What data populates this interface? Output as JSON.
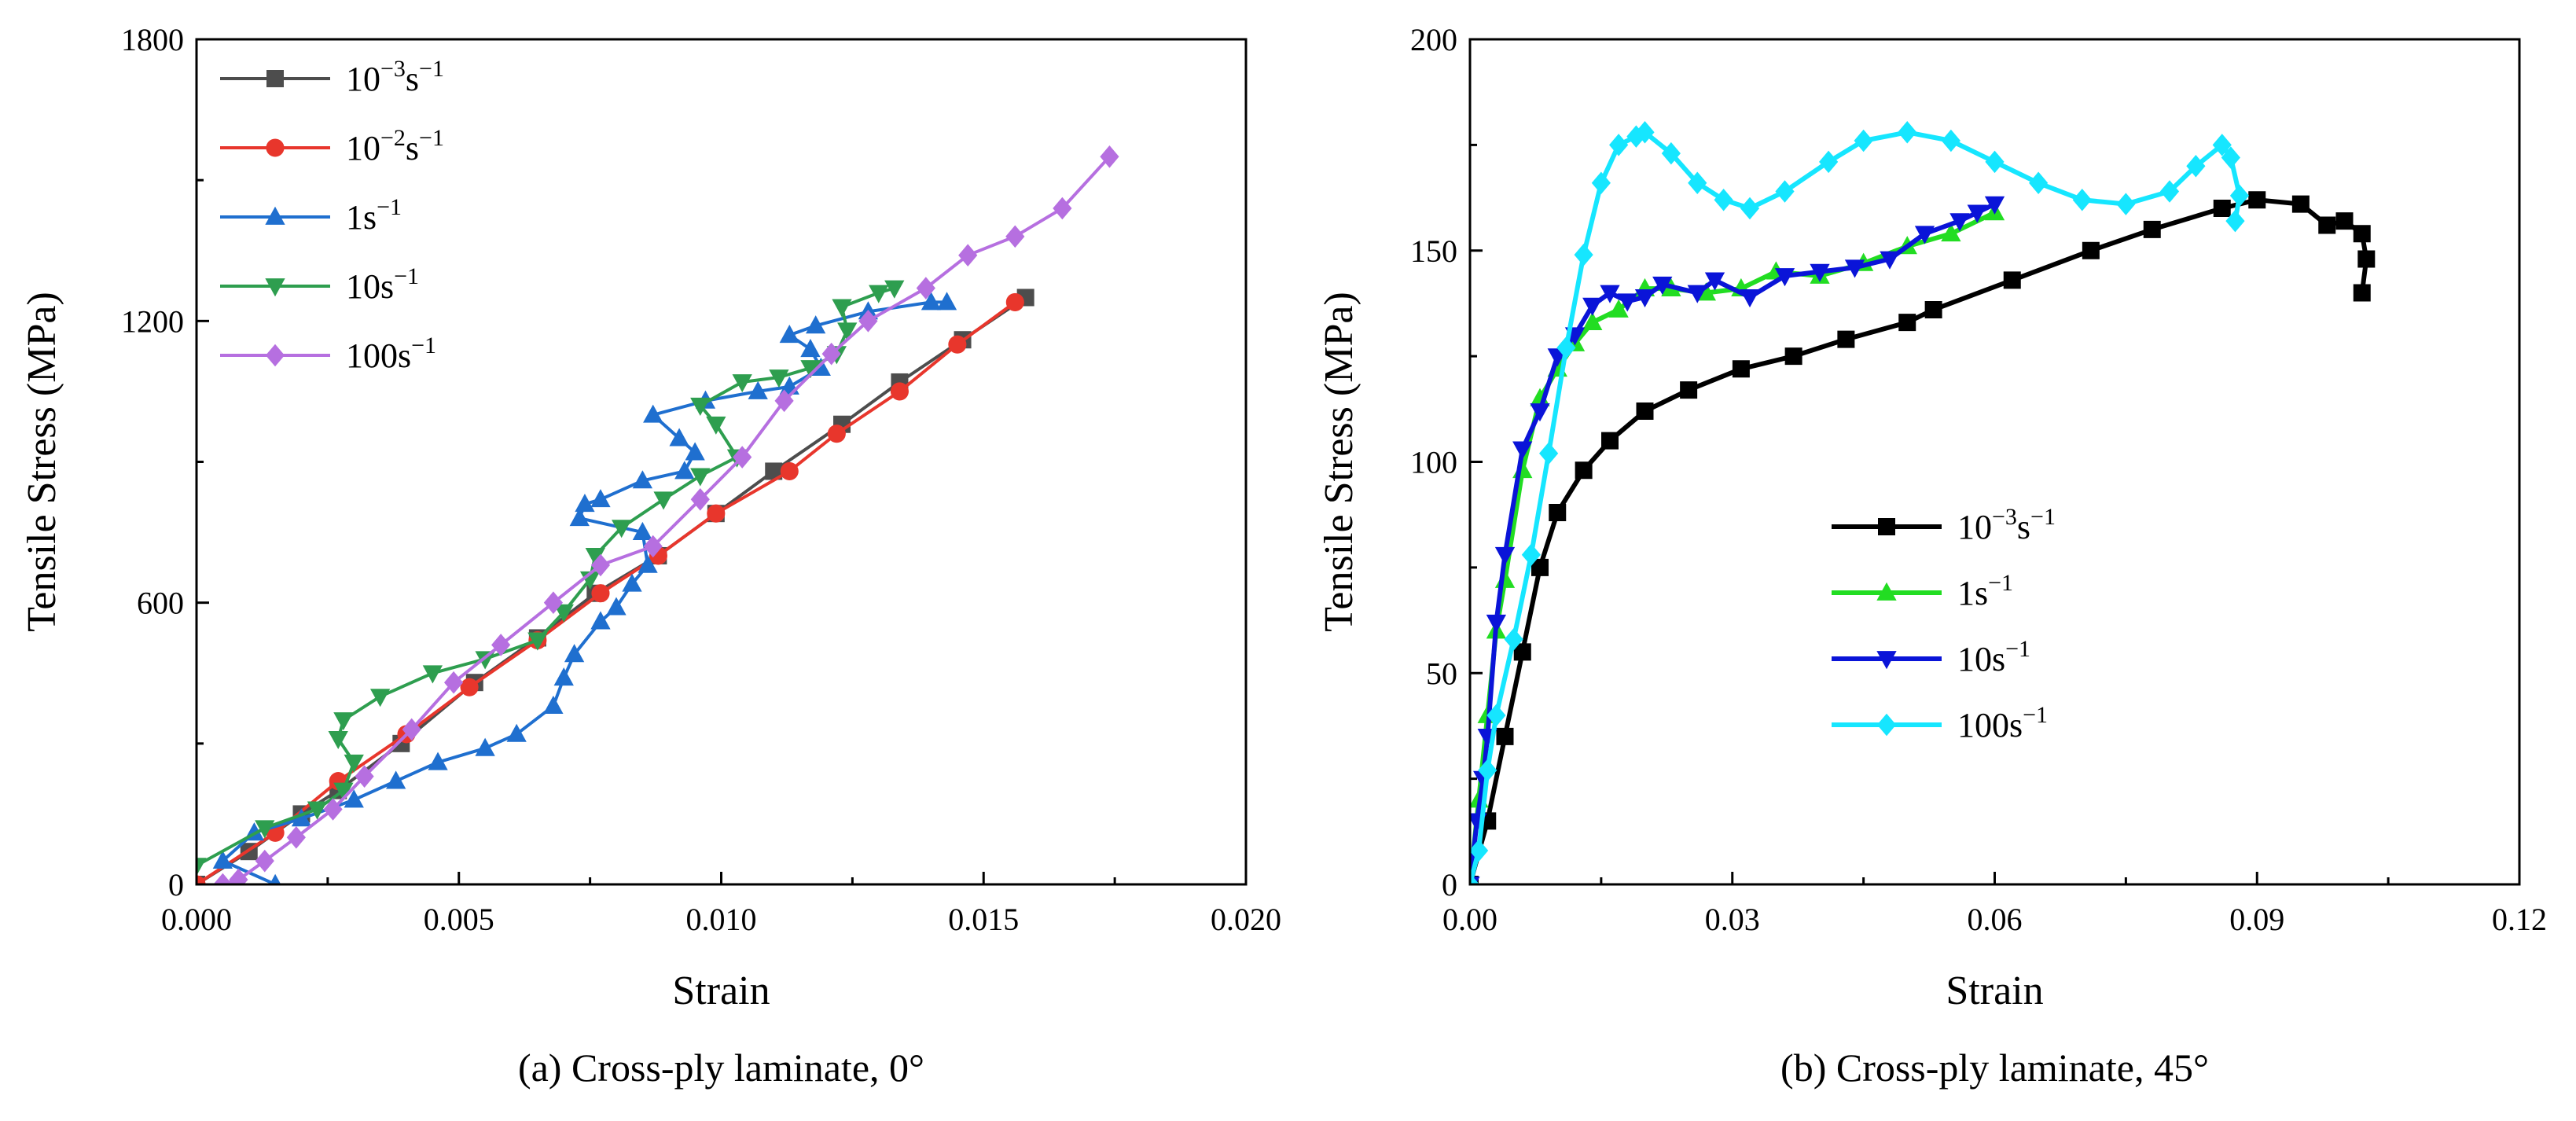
{
  "chart_data": [
    {
      "type": "line",
      "caption": "(a) Cross-ply laminate, 0°",
      "xlabel": "Strain",
      "ylabel": "Tensile Stress (MPa)",
      "xlim": [
        0,
        0.02
      ],
      "ylim": [
        0,
        1800
      ],
      "xticks": [
        "0.000",
        "0.005",
        "0.010",
        "0.015",
        "0.020"
      ],
      "yticks": [
        "0",
        "600",
        "1200",
        "1800"
      ],
      "legend_position": "top-left",
      "series": [
        {
          "name": "10⁻³s⁻¹",
          "base": "10",
          "exp": "−3",
          "unit": "s",
          "uexp": "−1",
          "color": "#4d4d4d",
          "marker": "square",
          "points": [
            [
              0.0,
              0
            ],
            [
              0.001,
              70
            ],
            [
              0.002,
              150
            ],
            [
              0.0027,
              200
            ],
            [
              0.0039,
              300
            ],
            [
              0.0053,
              430
            ],
            [
              0.0065,
              525
            ],
            [
              0.0076,
              620
            ],
            [
              0.0088,
              700
            ],
            [
              0.0099,
              790
            ],
            [
              0.011,
              880
            ],
            [
              0.0123,
              980
            ],
            [
              0.0134,
              1070
            ],
            [
              0.0146,
              1160
            ],
            [
              0.0158,
              1250
            ]
          ]
        },
        {
          "name": "10⁻²s⁻¹",
          "base": "10",
          "exp": "−2",
          "unit": "s",
          "uexp": "−1",
          "color": "#e8362c",
          "marker": "circle",
          "points": [
            [
              0.0,
              0
            ],
            [
              0.0015,
              110
            ],
            [
              0.0027,
              220
            ],
            [
              0.004,
              320
            ],
            [
              0.0052,
              420
            ],
            [
              0.0065,
              520
            ],
            [
              0.0077,
              620
            ],
            [
              0.0088,
              700
            ],
            [
              0.0099,
              790
            ],
            [
              0.0113,
              880
            ],
            [
              0.0122,
              960
            ],
            [
              0.0134,
              1050
            ],
            [
              0.0145,
              1150
            ],
            [
              0.0156,
              1240
            ]
          ]
        },
        {
          "name": "1s⁻¹",
          "base": "1",
          "exp": "",
          "unit": "s",
          "uexp": "−1",
          "color": "#1f6fcf",
          "marker": "triangle-up",
          "points": [
            [
              0.0015,
              0
            ],
            [
              0.0005,
              50
            ],
            [
              0.0011,
              110
            ],
            [
              0.002,
              140
            ],
            [
              0.003,
              180
            ],
            [
              0.0038,
              220
            ],
            [
              0.0046,
              260
            ],
            [
              0.0055,
              290
            ],
            [
              0.0061,
              320
            ],
            [
              0.0068,
              380
            ],
            [
              0.007,
              440
            ],
            [
              0.0072,
              490
            ],
            [
              0.0077,
              560
            ],
            [
              0.008,
              590
            ],
            [
              0.0083,
              640
            ],
            [
              0.0086,
              680
            ],
            [
              0.0085,
              750
            ],
            [
              0.0073,
              780
            ],
            [
              0.0074,
              810
            ],
            [
              0.0077,
              820
            ],
            [
              0.0085,
              860
            ],
            [
              0.0093,
              880
            ],
            [
              0.0095,
              920
            ],
            [
              0.0092,
              950
            ],
            [
              0.0087,
              1000
            ],
            [
              0.0097,
              1030
            ],
            [
              0.0107,
              1050
            ],
            [
              0.0113,
              1060
            ],
            [
              0.0119,
              1100
            ],
            [
              0.0117,
              1140
            ],
            [
              0.0113,
              1170
            ],
            [
              0.0118,
              1190
            ],
            [
              0.0128,
              1220
            ],
            [
              0.014,
              1240
            ],
            [
              0.0143,
              1240
            ]
          ]
        },
        {
          "name": "10s⁻¹",
          "base": "10",
          "exp": "",
          "unit": "s",
          "uexp": "−1",
          "color": "#2e9e4f",
          "marker": "triangle-down",
          "points": [
            [
              0.0,
              40
            ],
            [
              0.0013,
              120
            ],
            [
              0.0023,
              160
            ],
            [
              0.0028,
              200
            ],
            [
              0.003,
              260
            ],
            [
              0.0027,
              310
            ],
            [
              0.0028,
              350
            ],
            [
              0.0035,
              400
            ],
            [
              0.0045,
              450
            ],
            [
              0.0055,
              480
            ],
            [
              0.0065,
              520
            ],
            [
              0.007,
              580
            ],
            [
              0.0075,
              650
            ],
            [
              0.0076,
              700
            ],
            [
              0.0081,
              760
            ],
            [
              0.0089,
              820
            ],
            [
              0.0096,
              870
            ],
            [
              0.0103,
              910
            ],
            [
              0.0099,
              980
            ],
            [
              0.0096,
              1020
            ],
            [
              0.0104,
              1070
            ],
            [
              0.0111,
              1080
            ],
            [
              0.0117,
              1100
            ],
            [
              0.0122,
              1130
            ],
            [
              0.0124,
              1180
            ],
            [
              0.0123,
              1230
            ],
            [
              0.013,
              1260
            ],
            [
              0.0133,
              1270
            ]
          ]
        },
        {
          "name": "100s⁻¹",
          "base": "100",
          "exp": "",
          "unit": "s",
          "uexp": "−1",
          "color": "#b66fe0",
          "marker": "diamond",
          "points": [
            [
              0.0005,
              0
            ],
            [
              0.0008,
              10
            ],
            [
              0.0013,
              50
            ],
            [
              0.0019,
              100
            ],
            [
              0.0026,
              160
            ],
            [
              0.0032,
              230
            ],
            [
              0.0041,
              330
            ],
            [
              0.0049,
              430
            ],
            [
              0.0058,
              510
            ],
            [
              0.0068,
              600
            ],
            [
              0.0077,
              680
            ],
            [
              0.0087,
              720
            ],
            [
              0.0096,
              820
            ],
            [
              0.0104,
              910
            ],
            [
              0.0112,
              1030
            ],
            [
              0.0121,
              1130
            ],
            [
              0.0128,
              1200
            ],
            [
              0.0139,
              1270
            ],
            [
              0.0147,
              1340
            ],
            [
              0.0156,
              1380
            ],
            [
              0.0165,
              1440
            ],
            [
              0.0174,
              1550
            ]
          ]
        }
      ]
    },
    {
      "type": "line",
      "caption": "(b) Cross-ply laminate, 45°",
      "xlabel": "Strain",
      "ylabel": "Tensile Stress (MPa)",
      "xlim": [
        0,
        0.12
      ],
      "ylim": [
        0,
        200
      ],
      "xticks": [
        "0.00",
        "0.03",
        "0.06",
        "0.09",
        "0.12"
      ],
      "yticks": [
        "0",
        "50",
        "100",
        "150",
        "200"
      ],
      "legend_position": "center-right",
      "series": [
        {
          "name": "10⁻³s⁻¹",
          "base": "10",
          "exp": "−3",
          "unit": "s",
          "uexp": "−1",
          "color": "#000000",
          "marker": "square",
          "points": [
            [
              0.0,
              0
            ],
            [
              0.002,
              15
            ],
            [
              0.004,
              35
            ],
            [
              0.006,
              55
            ],
            [
              0.008,
              75
            ],
            [
              0.01,
              88
            ],
            [
              0.013,
              98
            ],
            [
              0.016,
              105
            ],
            [
              0.02,
              112
            ],
            [
              0.025,
              117
            ],
            [
              0.031,
              122
            ],
            [
              0.037,
              125
            ],
            [
              0.043,
              129
            ],
            [
              0.05,
              133
            ],
            [
              0.053,
              136
            ],
            [
              0.062,
              143
            ],
            [
              0.071,
              150
            ],
            [
              0.078,
              155
            ],
            [
              0.086,
              160
            ],
            [
              0.09,
              162
            ],
            [
              0.095,
              161
            ],
            [
              0.098,
              156
            ],
            [
              0.1,
              157
            ],
            [
              0.102,
              154
            ],
            [
              0.1025,
              148
            ],
            [
              0.102,
              140
            ]
          ]
        },
        {
          "name": "1s⁻¹",
          "base": "1",
          "exp": "",
          "unit": "s",
          "uexp": "−1",
          "color": "#22dd22",
          "marker": "triangle-up",
          "points": [
            [
              0.0,
              0
            ],
            [
              0.001,
              20
            ],
            [
              0.002,
              40
            ],
            [
              0.003,
              60
            ],
            [
              0.004,
              72
            ],
            [
              0.006,
              98
            ],
            [
              0.008,
              115
            ],
            [
              0.01,
              122
            ],
            [
              0.012,
              128
            ],
            [
              0.014,
              133
            ],
            [
              0.017,
              136
            ],
            [
              0.02,
              141
            ],
            [
              0.023,
              141
            ],
            [
              0.027,
              140
            ],
            [
              0.031,
              141
            ],
            [
              0.035,
              145
            ],
            [
              0.04,
              144
            ],
            [
              0.045,
              147
            ],
            [
              0.05,
              151
            ],
            [
              0.055,
              154
            ],
            [
              0.06,
              159
            ]
          ]
        },
        {
          "name": "10s⁻¹",
          "base": "10",
          "exp": "",
          "unit": "s",
          "uexp": "−1",
          "color": "#0a14d8",
          "marker": "triangle-down",
          "points": [
            [
              0.0,
              0
            ],
            [
              0.0008,
              15
            ],
            [
              0.0015,
              25
            ],
            [
              0.002,
              35
            ],
            [
              0.003,
              62
            ],
            [
              0.004,
              78
            ],
            [
              0.006,
              103
            ],
            [
              0.008,
              112
            ],
            [
              0.01,
              125
            ],
            [
              0.012,
              130
            ],
            [
              0.014,
              137
            ],
            [
              0.016,
              140
            ],
            [
              0.018,
              138
            ],
            [
              0.02,
              139
            ],
            [
              0.022,
              142
            ],
            [
              0.026,
              140
            ],
            [
              0.028,
              143
            ],
            [
              0.032,
              139
            ],
            [
              0.036,
              144
            ],
            [
              0.04,
              145
            ],
            [
              0.044,
              146
            ],
            [
              0.048,
              148
            ],
            [
              0.052,
              154
            ],
            [
              0.056,
              157
            ],
            [
              0.058,
              159
            ],
            [
              0.06,
              161
            ]
          ]
        },
        {
          "name": "100s⁻¹",
          "base": "100",
          "exp": "",
          "unit": "s",
          "uexp": "−1",
          "color": "#16e6ff",
          "marker": "diamond",
          "points": [
            [
              0.0,
              0
            ],
            [
              0.001,
              8
            ],
            [
              0.002,
              27
            ],
            [
              0.003,
              40
            ],
            [
              0.005,
              58
            ],
            [
              0.007,
              78
            ],
            [
              0.009,
              102
            ],
            [
              0.011,
              127
            ],
            [
              0.013,
              149
            ],
            [
              0.015,
              166
            ],
            [
              0.017,
              175
            ],
            [
              0.019,
              177
            ],
            [
              0.02,
              178
            ],
            [
              0.023,
              173
            ],
            [
              0.026,
              166
            ],
            [
              0.029,
              162
            ],
            [
              0.032,
              160
            ],
            [
              0.036,
              164
            ],
            [
              0.041,
              171
            ],
            [
              0.045,
              176
            ],
            [
              0.05,
              178
            ],
            [
              0.055,
              176
            ],
            [
              0.06,
              171
            ],
            [
              0.065,
              166
            ],
            [
              0.07,
              162
            ],
            [
              0.075,
              161
            ],
            [
              0.08,
              164
            ],
            [
              0.083,
              170
            ],
            [
              0.086,
              175
            ],
            [
              0.087,
              172
            ],
            [
              0.088,
              163
            ],
            [
              0.0875,
              157
            ]
          ]
        }
      ]
    }
  ]
}
